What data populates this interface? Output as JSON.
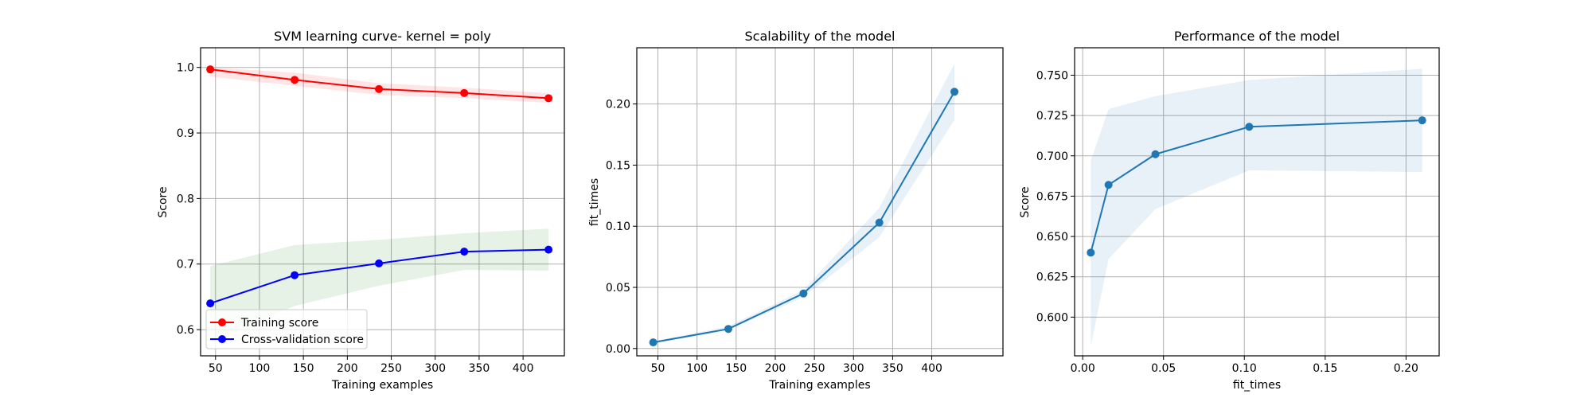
{
  "figure": {
    "background": "#ffffff"
  },
  "chart_data": [
    {
      "type": "line",
      "title": "SVM learning curve- kernel = poly",
      "xlabel": "Training examples",
      "ylabel": "Score",
      "xlim": [
        33,
        447
      ],
      "ylim": [
        0.56,
        1.03
      ],
      "xticks": [
        50,
        100,
        150,
        200,
        250,
        300,
        350,
        400
      ],
      "xticklabels": [
        "50",
        "100",
        "150",
        "200",
        "250",
        "300",
        "350",
        "400"
      ],
      "yticks": [
        0.6,
        0.7,
        0.8,
        0.9,
        1.0
      ],
      "yticklabels": [
        "0.6",
        "0.7",
        "0.8",
        "0.9",
        "1.0"
      ],
      "grid": true,
      "legend": "lower left",
      "x": [
        44,
        140,
        236,
        333,
        429
      ],
      "series": [
        {
          "name": "Training score",
          "color": "#ff0000",
          "band_color": "#ff0000",
          "values": [
            0.997,
            0.981,
            0.967,
            0.961,
            0.953
          ],
          "band_lower": [
            0.986,
            0.972,
            0.958,
            0.953,
            0.946
          ],
          "band_upper": [
            1.0,
            0.992,
            0.976,
            0.969,
            0.961
          ]
        },
        {
          "name": "Cross-validation score",
          "color": "#0000ff",
          "band_color": "#008000",
          "values": [
            0.64,
            0.683,
            0.701,
            0.719,
            0.722
          ],
          "band_lower": [
            0.582,
            0.636,
            0.667,
            0.691,
            0.69
          ],
          "band_upper": [
            0.697,
            0.729,
            0.737,
            0.747,
            0.754
          ]
        }
      ]
    },
    {
      "type": "line",
      "title": "Scalability of the model",
      "xlabel": "Training examples",
      "ylabel": "fit_times",
      "xlim": [
        23,
        491
      ],
      "ylim": [
        -0.006,
        0.246
      ],
      "xticks": [
        50,
        100,
        150,
        200,
        250,
        300,
        350,
        400
      ],
      "xticklabels": [
        "50",
        "100",
        "150",
        "200",
        "250",
        "300",
        "350",
        "400"
      ],
      "yticks": [
        0.0,
        0.05,
        0.1,
        0.15,
        0.2
      ],
      "yticklabels": [
        "0.00",
        "0.05",
        "0.10",
        "0.15",
        "0.20"
      ],
      "grid": true,
      "x": [
        44,
        140,
        236,
        333,
        429
      ],
      "series": [
        {
          "color": "#1f77b4",
          "values": [
            0.005,
            0.016,
            0.045,
            0.103,
            0.21
          ],
          "band_lower": [
            0.004,
            0.015,
            0.042,
            0.091,
            0.187
          ],
          "band_upper": [
            0.006,
            0.018,
            0.048,
            0.115,
            0.233
          ]
        }
      ]
    },
    {
      "type": "line",
      "title": "Performance of the model",
      "xlabel": "fit_times",
      "ylabel": "Score",
      "xlim": [
        -0.005,
        0.2205
      ],
      "ylim": [
        0.576,
        0.767
      ],
      "xticks": [
        0.0,
        0.05,
        0.1,
        0.15,
        0.2
      ],
      "xticklabels": [
        "0.00",
        "0.05",
        "0.10",
        "0.15",
        "0.20"
      ],
      "yticks": [
        0.6,
        0.625,
        0.65,
        0.675,
        0.7,
        0.725,
        0.75
      ],
      "yticklabels": [
        "0.600",
        "0.625",
        "0.650",
        "0.675",
        "0.700",
        "0.725",
        "0.750"
      ],
      "grid": true,
      "x": [
        0.005,
        0.016,
        0.045,
        0.103,
        0.21
      ],
      "series": [
        {
          "color": "#1f77b4",
          "values": [
            0.64,
            0.682,
            0.701,
            0.718,
            0.722
          ],
          "band_lower": [
            0.582,
            0.636,
            0.667,
            0.691,
            0.69
          ],
          "band_upper": [
            0.697,
            0.729,
            0.737,
            0.747,
            0.754
          ]
        }
      ]
    }
  ]
}
